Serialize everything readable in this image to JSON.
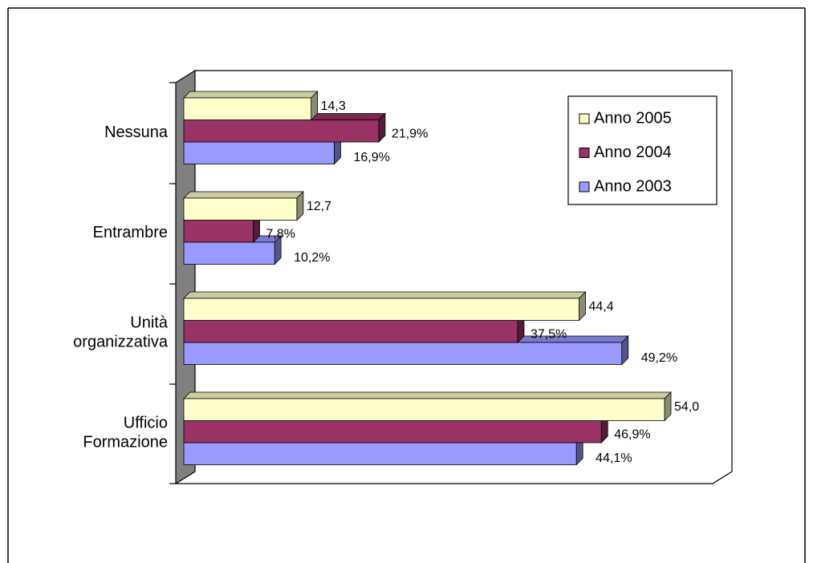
{
  "chart_data": {
    "type": "bar3d-horizontal",
    "categories": [
      "Nessuna",
      "Entrambre",
      "Unità organizzativa",
      "Ufficio Formazione"
    ],
    "series": [
      {
        "name": "Anno 2005",
        "color": "#FFFFCC",
        "values": [
          14.3,
          12.7,
          44.4,
          54.0
        ],
        "value_labels": [
          "14,3",
          "12,7",
          "44,4",
          "54,0"
        ]
      },
      {
        "name": "Anno 2004",
        "color": "#993366",
        "values": [
          21.9,
          7.8,
          37.5,
          46.9
        ],
        "value_labels": [
          "21,9%",
          "7,8%",
          "37,5%",
          "46,9%"
        ]
      },
      {
        "name": "Anno 2003",
        "color": "#9999FF",
        "values": [
          16.9,
          10.2,
          49.2,
          44.1
        ],
        "value_labels": [
          "16,9%",
          "10,2%",
          "49,2%",
          "44,1%"
        ]
      }
    ],
    "legend": "upper right"
  }
}
